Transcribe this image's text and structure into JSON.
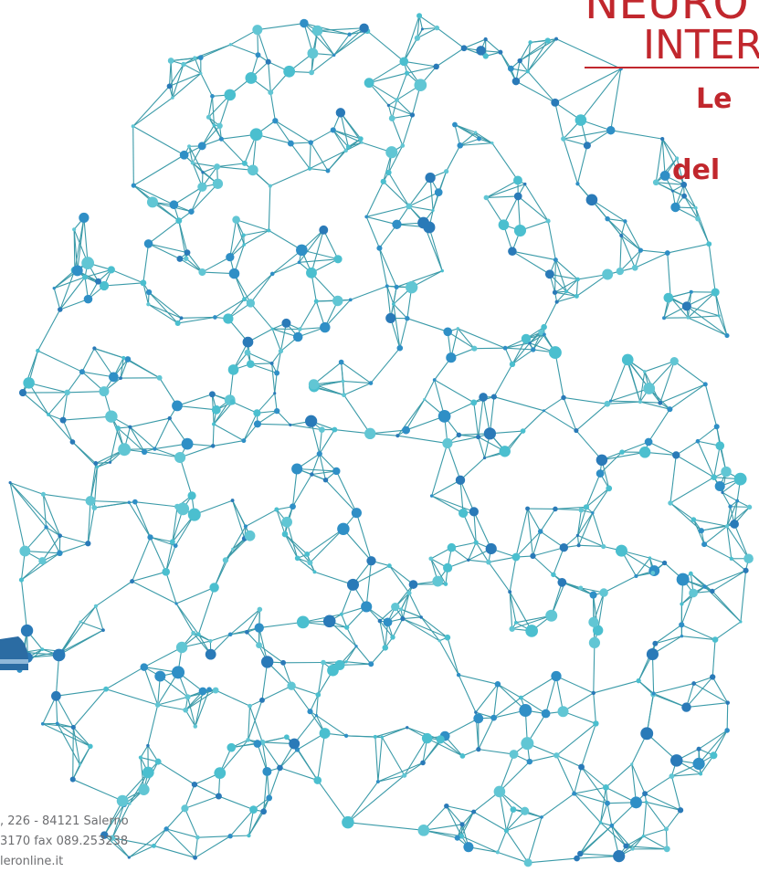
{
  "header": {
    "title_line1": "NEURO",
    "title_line2": "INTER",
    "subtitle_line1": "Le",
    "subtitle_line2": "del"
  },
  "footer": {
    "address": ", 226 - 84121 Salerno",
    "phone": "3170 fax 089.253238",
    "web": "leronline.it"
  }
}
